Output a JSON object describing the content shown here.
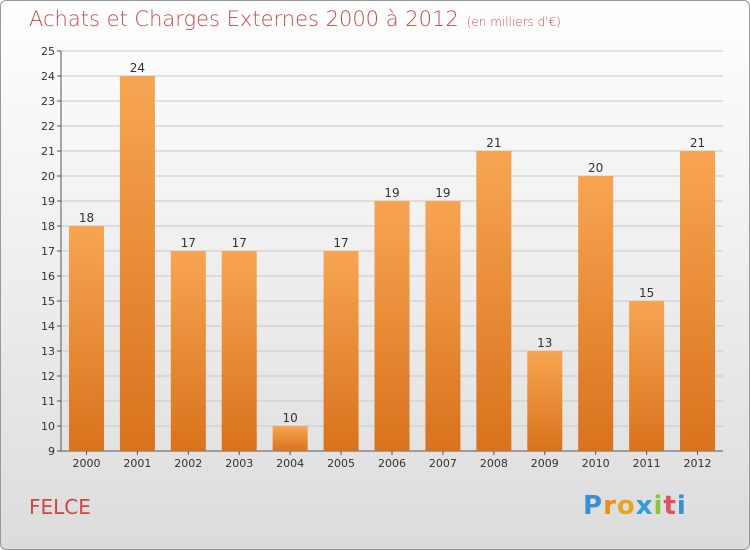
{
  "title": "Achats et Charges Externes 2000 à 2012",
  "subtitle": "(en milliers d'€)",
  "commune": "FELCE",
  "logo": "Proxiti",
  "colors": {
    "title": "#c84a45",
    "bar_top": "#f7a552",
    "bar_bottom": "#d9721c",
    "grid": "#c8c8c8"
  },
  "chart_data": {
    "type": "bar",
    "title": "Achats et Charges Externes 2000 à 2012",
    "subtitle": "(en milliers d'€)",
    "xlabel": "",
    "ylabel": "",
    "categories": [
      "2000",
      "2001",
      "2002",
      "2003",
      "2004",
      "2005",
      "2006",
      "2007",
      "2008",
      "2009",
      "2010",
      "2011",
      "2012"
    ],
    "values": [
      18,
      24,
      17,
      17,
      10,
      17,
      19,
      19,
      21,
      13,
      20,
      15,
      21
    ],
    "ylim": [
      9,
      25
    ],
    "yticks": [
      9,
      10,
      11,
      12,
      13,
      14,
      15,
      16,
      17,
      18,
      19,
      20,
      21,
      22,
      23,
      24,
      25
    ],
    "grid": true,
    "data_labels": true
  }
}
